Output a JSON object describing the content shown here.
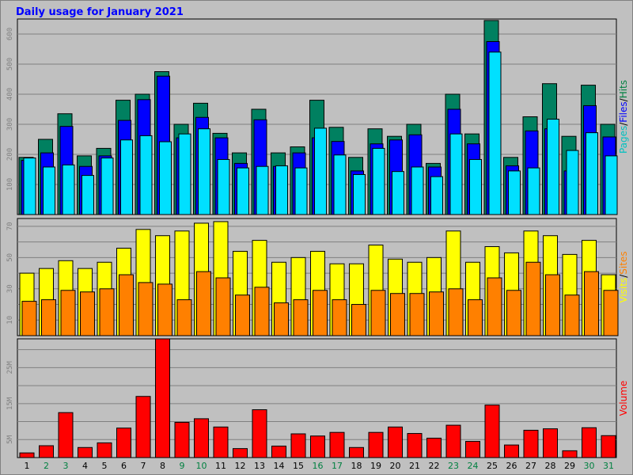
{
  "chart_data": {
    "type": "bar",
    "title": "Daily usage for January 2021",
    "background_color": "#c0c0c0",
    "grid": true,
    "categories": [
      "1",
      "2",
      "3",
      "4",
      "5",
      "6",
      "7",
      "8",
      "9",
      "10",
      "11",
      "12",
      "13",
      "14",
      "15",
      "16",
      "17",
      "18",
      "19",
      "20",
      "21",
      "22",
      "23",
      "24",
      "25",
      "26",
      "27",
      "28",
      "29",
      "30",
      "31"
    ],
    "weekend_days": [
      "2",
      "3",
      "9",
      "10",
      "16",
      "17",
      "23",
      "24",
      "30",
      "31"
    ],
    "colors": {
      "weekday_label": "#000000",
      "weekend_label": "#008040"
    },
    "panels": [
      {
        "ylim": [
          0,
          650
        ],
        "yticks": [
          "100",
          "200",
          "300",
          "400",
          "500",
          "600"
        ],
        "ylabel_parts": [
          {
            "text": "Pages",
            "color": "#00c0c0"
          },
          {
            "text": "/",
            "color": "#000000"
          },
          {
            "text": "Files",
            "color": "#0000ff"
          },
          {
            "text": "/",
            "color": "#000000"
          },
          {
            "text": "Hits",
            "color": "#008040"
          }
        ],
        "series": [
          {
            "name": "Hits",
            "color": "#008060",
            "values": [
              190,
              250,
              335,
              195,
              220,
              380,
              400,
              475,
              300,
              370,
              270,
              205,
              350,
              205,
              225,
              380,
              290,
              190,
              285,
              260,
              300,
              170,
              400,
              268,
              645,
              190,
              325,
              435,
              260,
              430,
              300
            ]
          },
          {
            "name": "Files",
            "color": "#0000ff",
            "values": [
              180,
              205,
              293,
              160,
              195,
              313,
              382,
              460,
              255,
              323,
              255,
              170,
              315,
              160,
              205,
              255,
              243,
              145,
              235,
              248,
              265,
              158,
              350,
              235,
              575,
              162,
              278,
              285,
              145,
              362,
              258
            ]
          },
          {
            "name": "Pages",
            "color": "#00e0ff",
            "values": [
              188,
              158,
              165,
              130,
              188,
              248,
              262,
              242,
              268,
              285,
              183,
              155,
              160,
              162,
              155,
              287,
              198,
              133,
              220,
              143,
              158,
              126,
              268,
              183,
              540,
              145,
              155,
              317,
              213,
              272,
              195
            ]
          }
        ]
      },
      {
        "ylim": [
          0,
          75
        ],
        "yticks": [
          "10",
          "30",
          "50",
          "70"
        ],
        "ylabel_parts": [
          {
            "text": "Visits",
            "color": "#ffff00"
          },
          {
            "text": "/",
            "color": "#000000"
          },
          {
            "text": "Sites",
            "color": "#ff8000"
          }
        ],
        "series": [
          {
            "name": "Visits",
            "color": "#ffff00",
            "values": [
              40,
              43,
              48,
              43,
              47,
              56,
              68,
              64,
              67,
              72,
              73,
              54,
              61,
              47,
              50,
              54,
              46,
              46,
              58,
              49,
              47,
              50,
              67,
              47,
              57,
              53,
              67,
              64,
              52,
              61,
              39
            ]
          },
          {
            "name": "Sites",
            "color": "#ff8000",
            "values": [
              22,
              23,
              29,
              28,
              30,
              39,
              34,
              33,
              23,
              41,
              37,
              26,
              31,
              21,
              23,
              29,
              23,
              20,
              29,
              27,
              27,
              28,
              30,
              23,
              37,
              29,
              47,
              39,
              26,
              41,
              29
            ]
          }
        ]
      },
      {
        "ylim": [
          0,
          33000000
        ],
        "yticks": [
          "5M",
          "15M",
          "25M"
        ],
        "ylabel_parts": [
          {
            "text": "Volume",
            "color": "#ff0000"
          }
        ],
        "series": [
          {
            "name": "Volume",
            "color": "#ff0000",
            "values": [
              1300000,
              3300000,
              12500000,
              2800000,
              4100000,
              8200000,
              17000000,
              33000000,
              9800000,
              10800000,
              8500000,
              2500000,
              13300000,
              3200000,
              6600000,
              6000000,
              7000000,
              2800000,
              7000000,
              8500000,
              6700000,
              5400000,
              9000000,
              4500000,
              14600000,
              3500000,
              7600000,
              8000000,
              1900000,
              8300000,
              6100000
            ]
          }
        ]
      }
    ]
  }
}
